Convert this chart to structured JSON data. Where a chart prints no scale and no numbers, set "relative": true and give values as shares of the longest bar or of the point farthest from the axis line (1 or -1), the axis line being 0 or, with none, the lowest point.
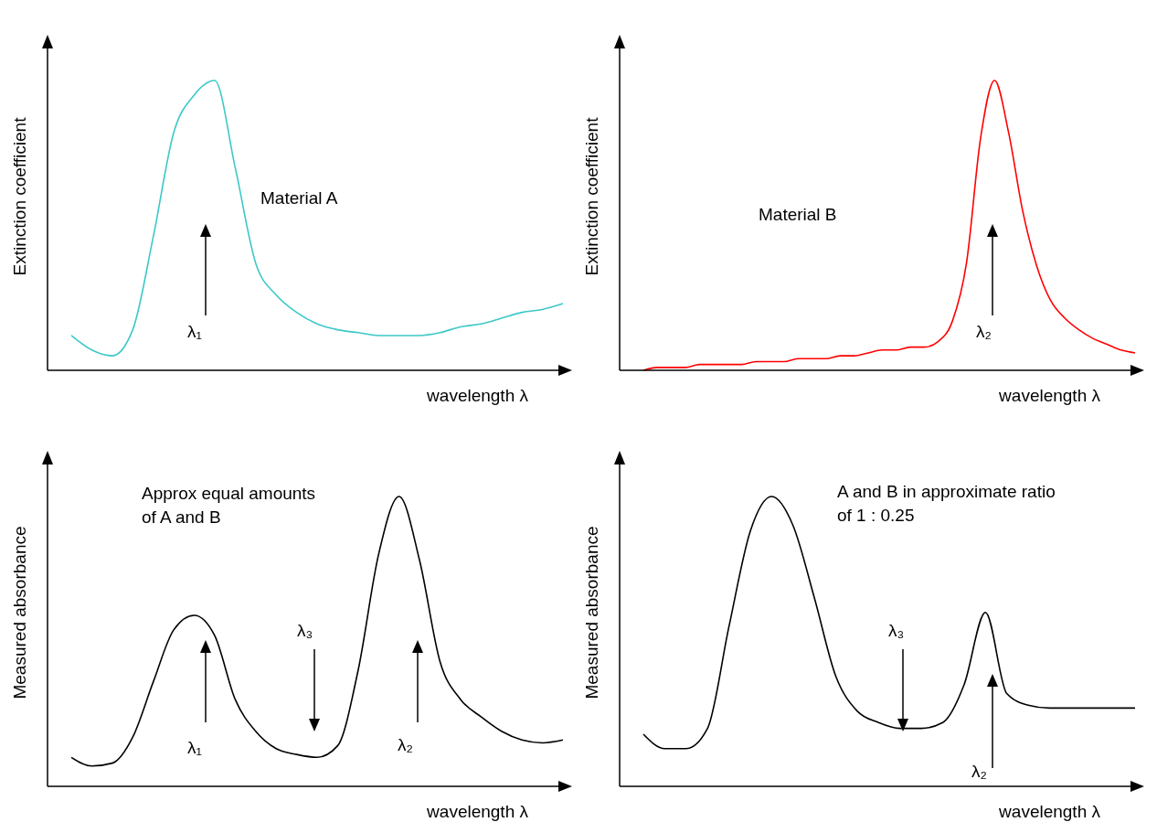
{
  "chart_data": [
    {
      "type": "line",
      "relative": true,
      "ylabel": "Extinction coefficient",
      "xlabel": "wavelength λ",
      "annotations": [
        "Material A",
        "λ₁"
      ],
      "categories": [
        null,
        null,
        null,
        null,
        null,
        null,
        null,
        null,
        null,
        null,
        null,
        null,
        null,
        null,
        null,
        null,
        null,
        null,
        null,
        null,
        null,
        null,
        null,
        null,
        null
      ],
      "series": [
        {
          "color": "#3cc8c8",
          "values": [
            0.12,
            0.07,
            0.05,
            0.14,
            0.46,
            0.82,
            0.95,
            1,
            0.7,
            0.37,
            0.26,
            0.2,
            0.16,
            0.14,
            0.13,
            0.12,
            0.12,
            0.12,
            0.13,
            0.15,
            0.16,
            0.18,
            0.2,
            0.21,
            0.23
          ]
        }
      ]
    },
    {
      "type": "line",
      "relative": true,
      "ylabel": "Extinction coefficient",
      "xlabel": "wavelength λ",
      "annotations": [
        "Material B",
        "λ₂"
      ],
      "categories": [
        null,
        null,
        null,
        null,
        null,
        null,
        null,
        null,
        null,
        null,
        null,
        null,
        null,
        null,
        null,
        null,
        null,
        null,
        null,
        null,
        null,
        null,
        null,
        null,
        null,
        null,
        null,
        null,
        null,
        null,
        null,
        null,
        null,
        null,
        null,
        null
      ],
      "series": [
        {
          "color": "#ff0000",
          "values": [
            0,
            0.01,
            0.01,
            0.01,
            0.02,
            0.02,
            0.02,
            0.02,
            0.03,
            0.03,
            0.03,
            0.04,
            0.04,
            0.04,
            0.05,
            0.05,
            0.06,
            0.07,
            0.07,
            0.08,
            0.08,
            0.1,
            0.17,
            0.37,
            0.8,
            1,
            0.82,
            0.55,
            0.36,
            0.24,
            0.18,
            0.14,
            0.11,
            0.09,
            0.07,
            0.06
          ]
        }
      ]
    },
    {
      "type": "line",
      "relative": true,
      "ylabel": "Measured absorbance",
      "xlabel": "wavelength λ",
      "annotations": [
        "Approx equal amounts of A and B",
        "λ₁",
        "λ₃",
        "λ₂"
      ],
      "categories": [
        null,
        null,
        null,
        null,
        null,
        null,
        null,
        null,
        null,
        null,
        null,
        null,
        null,
        null,
        null,
        null,
        null,
        null,
        null,
        null,
        null,
        null,
        null,
        null,
        null
      ],
      "series": [
        {
          "color": "#000000",
          "values": [
            0.1,
            0.07,
            0.08,
            0.17,
            0.36,
            0.54,
            0.59,
            0.52,
            0.3,
            0.19,
            0.13,
            0.11,
            0.1,
            0.14,
            0.4,
            0.8,
            1,
            0.78,
            0.43,
            0.3,
            0.24,
            0.19,
            0.16,
            0.15,
            0.16
          ]
        }
      ]
    },
    {
      "type": "line",
      "relative": true,
      "ylabel": "Measured absorbance",
      "xlabel": "wavelength λ",
      "annotations": [
        "A and B in approximate ratio of  1 : 0.25",
        "λ₃",
        "λ₂"
      ],
      "categories": [
        null,
        null,
        null,
        null,
        null,
        null,
        null,
        null,
        null,
        null,
        null,
        null,
        null,
        null,
        null,
        null,
        null,
        null,
        null,
        null,
        null,
        null,
        null,
        null
      ],
      "series": [
        {
          "color": "#000000",
          "values": [
            0.18,
            0.13,
            0.13,
            0.2,
            0.55,
            0.88,
            1,
            0.9,
            0.65,
            0.38,
            0.26,
            0.22,
            0.2,
            0.2,
            0.22,
            0.35,
            0.6,
            0.32,
            0.28,
            0.27,
            0.27,
            0.27,
            0.27,
            0.27
          ]
        }
      ]
    }
  ]
}
